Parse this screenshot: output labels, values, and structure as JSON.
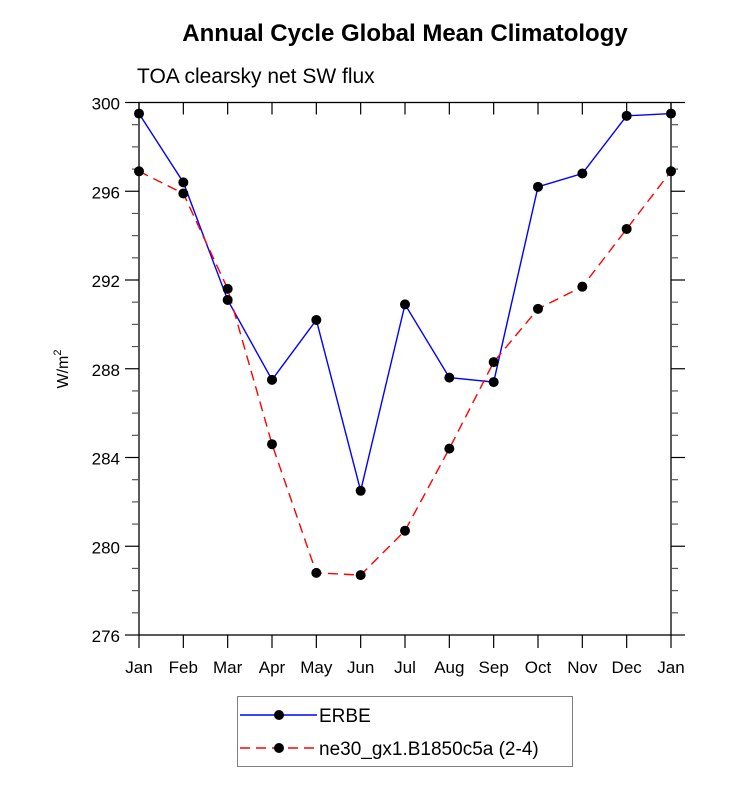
{
  "chart_data": {
    "type": "line",
    "title": "Annual Cycle Global Mean Climatology",
    "subtitle": "TOA clearsky net SW flux",
    "xlabel": "",
    "ylabel": "W/m",
    "ylabel_superscript": "2",
    "categories": [
      "Jan",
      "Feb",
      "Mar",
      "Apr",
      "May",
      "Jun",
      "Jul",
      "Aug",
      "Sep",
      "Oct",
      "Nov",
      "Dec",
      "Jan"
    ],
    "ylim": [
      276,
      300
    ],
    "yticks": [
      276,
      280,
      284,
      288,
      292,
      296,
      300
    ],
    "ytick_labels": [
      "276",
      "280",
      "284",
      "288",
      "292",
      "296",
      "300"
    ],
    "y_minor_step": 1,
    "grid": false,
    "legend_position": "bottom-center",
    "series": [
      {
        "name": "ERBE",
        "color": "#0000ff",
        "line_style": "solid",
        "marker": "filled-circle",
        "marker_color": "#000000",
        "values": [
          299.5,
          296.4,
          291.1,
          287.5,
          290.2,
          282.5,
          290.9,
          287.6,
          287.4,
          296.2,
          296.8,
          299.4,
          299.5
        ]
      },
      {
        "name": "ne30_gx1.B1850c5a (2-4)",
        "color": "#ff0000",
        "line_style": "dashed",
        "marker": "filled-circle",
        "marker_color": "#000000",
        "values": [
          296.9,
          295.9,
          291.6,
          284.6,
          278.8,
          278.7,
          280.7,
          284.4,
          288.3,
          290.7,
          291.7,
          294.3,
          296.9
        ]
      }
    ]
  }
}
